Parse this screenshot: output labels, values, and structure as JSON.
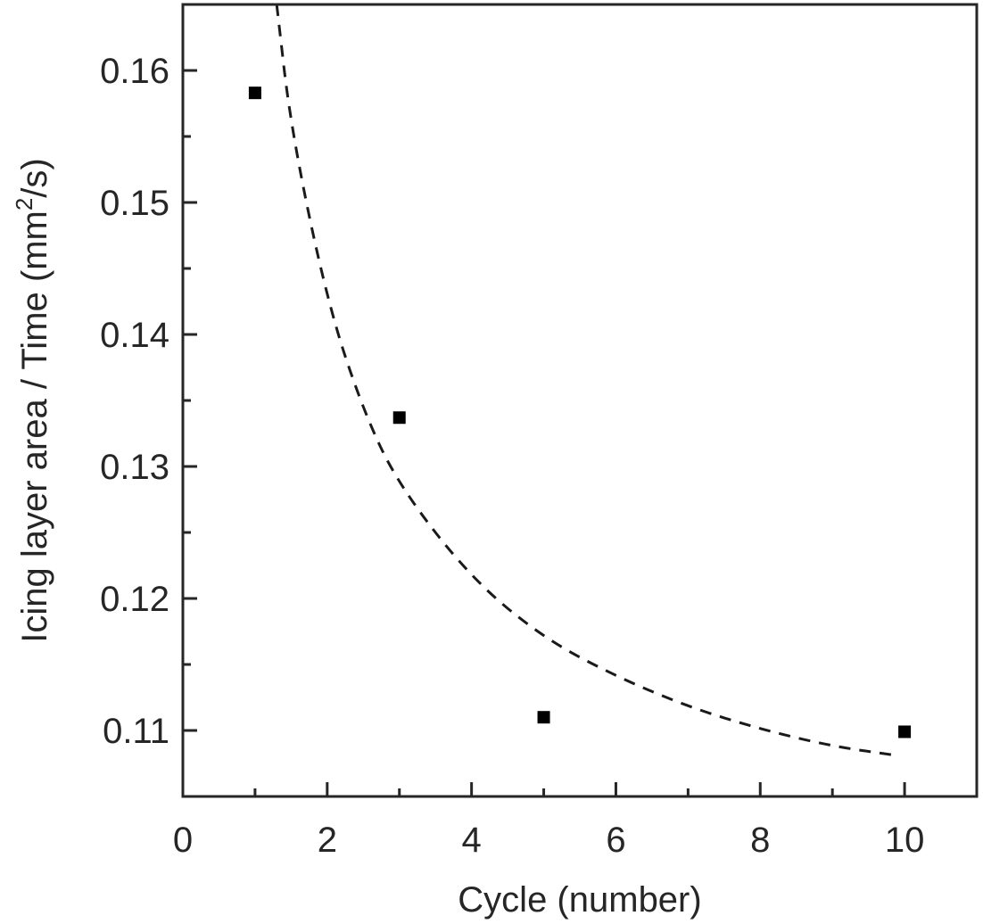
{
  "chart_data": {
    "type": "scatter",
    "xlabel": "Cycle (number)",
    "ylabel_parts": [
      "Icing layer area / Time (mm",
      "2",
      "/s)"
    ],
    "xlim": [
      0,
      11
    ],
    "ylim": [
      0.105,
      0.165
    ],
    "xticks": [
      0,
      2,
      4,
      6,
      8,
      10
    ],
    "xtick_labels": [
      "0",
      "2",
      "4",
      "6",
      "8",
      "10"
    ],
    "yticks": [
      0.11,
      0.12,
      0.13,
      0.14,
      0.15,
      0.16
    ],
    "ytick_labels": [
      "0.11",
      "0.12",
      "0.13",
      "0.14",
      "0.15",
      "0.16"
    ],
    "minor_xticks": [
      1,
      3,
      5,
      7,
      9,
      11
    ],
    "minor_yticks": [
      0.105,
      0.115,
      0.125,
      0.135,
      0.145,
      0.155,
      0.165
    ],
    "grid": false,
    "legend": "none",
    "series": [
      {
        "marker": "square",
        "color": "#000000",
        "points": [
          {
            "x": 1,
            "y": 0.1583
          },
          {
            "x": 3,
            "y": 0.1337
          },
          {
            "x": 5,
            "y": 0.111
          },
          {
            "x": 10,
            "y": 0.1099
          }
        ]
      }
    ],
    "fit_curve": {
      "style": "dashed",
      "color": "#1a1a1a",
      "points": [
        {
          "x": 1.3,
          "y": 0.165
        },
        {
          "x": 1.5,
          "y": 0.1555
        },
        {
          "x": 2.0,
          "y": 0.1425
        },
        {
          "x": 2.5,
          "y": 0.1342
        },
        {
          "x": 3.0,
          "y": 0.1285
        },
        {
          "x": 4.0,
          "y": 0.1215
        },
        {
          "x": 5.0,
          "y": 0.117
        },
        {
          "x": 6.0,
          "y": 0.1141
        },
        {
          "x": 7.0,
          "y": 0.1118
        },
        {
          "x": 8.0,
          "y": 0.1101
        },
        {
          "x": 9.0,
          "y": 0.1088
        },
        {
          "x": 9.9,
          "y": 0.1081
        }
      ]
    }
  }
}
